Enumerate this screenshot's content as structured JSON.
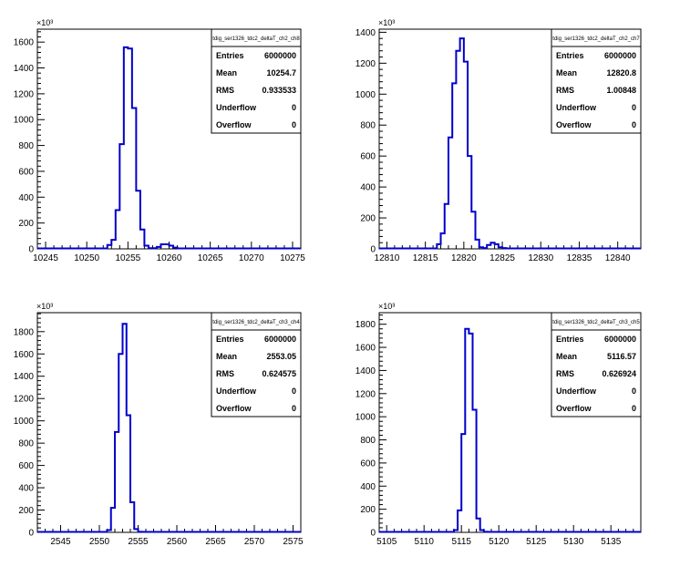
{
  "chart_data": [
    {
      "type": "histogram",
      "title": "tdig_ser1326_tdc2_deltaT_ch2_ch8",
      "exponent_label": "×10³",
      "xlim": [
        10244,
        10276
      ],
      "ylim": [
        0,
        1700
      ],
      "xticks": [
        10245,
        10250,
        10255,
        10260,
        10265,
        10270,
        10275
      ],
      "yticks": [
        0,
        200,
        400,
        600,
        800,
        1000,
        1200,
        1400,
        1600
      ],
      "bin_edges": [
        10252.5,
        10253.0,
        10253.5,
        10254.0,
        10254.5,
        10255.0,
        10255.5,
        10256.0,
        10256.5,
        10257.0,
        10257.5,
        10258.0,
        10258.5,
        10259.0,
        10259.5,
        10260.0,
        10260.5,
        10261.0
      ],
      "values": [
        30,
        70,
        300,
        810,
        1560,
        1550,
        1090,
        450,
        150,
        25,
        5,
        5,
        15,
        35,
        35,
        25,
        10
      ],
      "stats": {
        "entries": "6000000",
        "mean": "10254.7",
        "rms": "0.933533",
        "underflow": "0",
        "overflow": "0"
      }
    },
    {
      "type": "histogram",
      "title": "tdig_ser1326_tdc2_deltaT_ch2_ch7",
      "exponent_label": "×10³",
      "xlim": [
        12809,
        12843
      ],
      "ylim": [
        0,
        1420
      ],
      "xticks": [
        12810,
        12815,
        12820,
        12825,
        12830,
        12835,
        12840
      ],
      "yticks": [
        0,
        200,
        400,
        600,
        800,
        1000,
        1200,
        1400
      ],
      "bin_edges": [
        12816.5,
        12817.0,
        12817.5,
        12818.0,
        12818.5,
        12819.0,
        12819.5,
        12820.0,
        12820.5,
        12821.0,
        12821.5,
        12822.0,
        12822.5,
        12823.0,
        12823.5,
        12824.0,
        12824.5,
        12825.0,
        12825.5
      ],
      "values": [
        30,
        100,
        290,
        720,
        1070,
        1280,
        1360,
        1210,
        600,
        240,
        60,
        10,
        5,
        25,
        40,
        30,
        10,
        5
      ],
      "stats": {
        "entries": "6000000",
        "mean": "12820.8",
        "rms": "1.00848",
        "underflow": "0",
        "overflow": "0"
      }
    },
    {
      "type": "histogram",
      "title": "tdig_ser1326_tdc2_deltaT_ch3_ch4",
      "exponent_label": "×10³",
      "xlim": [
        2542,
        2576
      ],
      "ylim": [
        0,
        1970
      ],
      "xticks": [
        2545,
        2550,
        2555,
        2560,
        2565,
        2570,
        2575
      ],
      "yticks": [
        0,
        200,
        400,
        600,
        800,
        1000,
        1200,
        1400,
        1600,
        1800
      ],
      "bin_edges": [
        2551.0,
        2551.5,
        2552.0,
        2552.5,
        2553.0,
        2553.5,
        2554.0,
        2554.5,
        2555.0,
        2555.5
      ],
      "values": [
        20,
        220,
        900,
        1600,
        1870,
        1050,
        270,
        30,
        5
      ],
      "stats": {
        "entries": "6000000",
        "mean": "2553.05",
        "rms": "0.624575",
        "underflow": "0",
        "overflow": "0"
      }
    },
    {
      "type": "histogram",
      "title": "tdig_ser1326_tdc2_deltaT_ch3_ch5",
      "exponent_label": "×10³",
      "xlim": [
        5104,
        5139
      ],
      "ylim": [
        0,
        1900
      ],
      "xticks": [
        5105,
        5110,
        5115,
        5120,
        5125,
        5130,
        5135
      ],
      "yticks": [
        0,
        200,
        400,
        600,
        800,
        1000,
        1200,
        1400,
        1600,
        1800
      ],
      "bin_edges": [
        5114.0,
        5114.5,
        5115.0,
        5115.5,
        5116.0,
        5116.5,
        5117.0,
        5117.5,
        5118.0,
        5118.5
      ],
      "values": [
        20,
        190,
        850,
        1760,
        1720,
        1060,
        120,
        20,
        5
      ],
      "stats": {
        "entries": "6000000",
        "mean": "5116.57",
        "rms": "0.626924",
        "underflow": "0",
        "overflow": "0"
      }
    }
  ],
  "stat_labels": {
    "entries": "Entries",
    "mean": "Mean",
    "rms": "RMS",
    "underflow": "Underflow",
    "overflow": "Overflow"
  },
  "line_color": "#0000cc"
}
